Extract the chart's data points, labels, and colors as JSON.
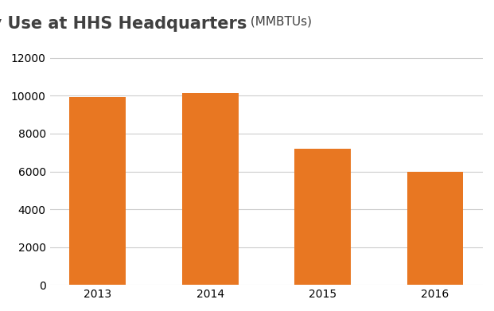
{
  "categories": [
    "2013",
    "2014",
    "2015",
    "2016"
  ],
  "values": [
    9950,
    10150,
    7200,
    6000
  ],
  "bar_color": "#E87722",
  "title_main": "Energy Use at HHS Headquarters",
  "title_units": " (MMBTUs)",
  "ylim": [
    0,
    13000
  ],
  "yticks": [
    0,
    2000,
    4000,
    6000,
    8000,
    10000,
    12000
  ],
  "background_color": "#ffffff",
  "grid_color": "#cccccc",
  "bar_width": 0.5,
  "title_fontsize": 15,
  "title_units_fontsize": 11,
  "tick_fontsize": 10,
  "title_color": "#404040",
  "title_fontweight": "bold"
}
